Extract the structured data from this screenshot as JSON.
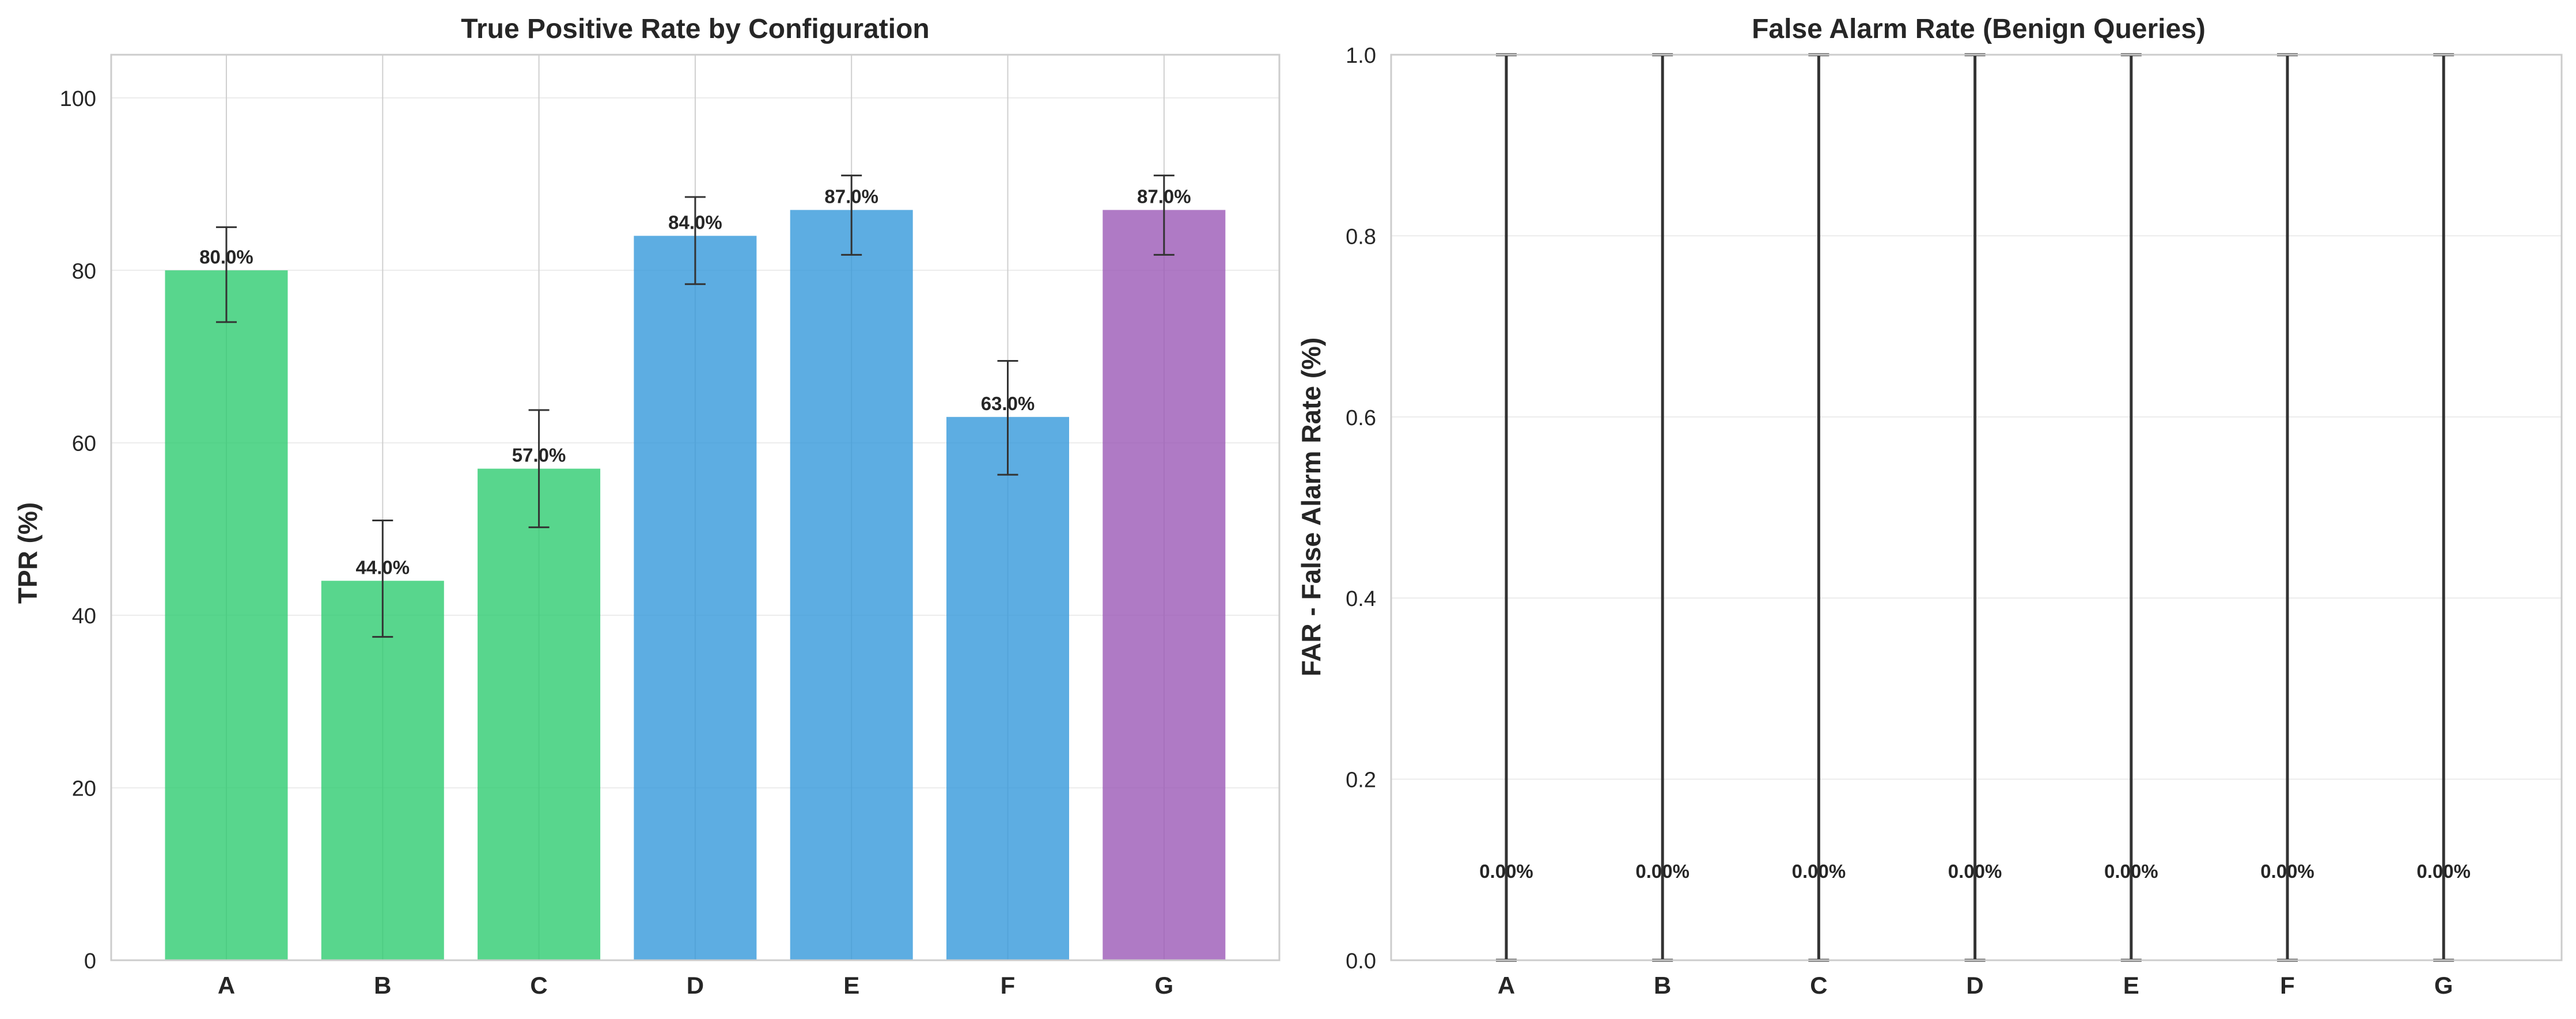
{
  "chart_data": [
    {
      "type": "bar",
      "title": "True Positive Rate by Configuration",
      "xlabel": "",
      "ylabel": "TPR (%)",
      "categories": [
        "A",
        "B",
        "C",
        "D",
        "E",
        "F",
        "G"
      ],
      "values": [
        80.0,
        44.0,
        57.0,
        84.0,
        87.0,
        63.0,
        87.0
      ],
      "error_low": [
        74.0,
        37.5,
        50.2,
        78.4,
        81.8,
        56.3,
        81.8
      ],
      "error_high": [
        85.0,
        51.0,
        63.8,
        88.5,
        91.0,
        69.5,
        91.0
      ],
      "value_labels": [
        "80.0%",
        "44.0%",
        "57.0%",
        "84.0%",
        "87.0%",
        "63.0%",
        "87.0%"
      ],
      "colors": [
        "#2ecc71",
        "#2ecc71",
        "#2ecc71",
        "#3498db",
        "#3498db",
        "#3498db",
        "#9b59b6"
      ],
      "ylim": [
        0,
        105
      ],
      "yticks": [
        0,
        20,
        40,
        60,
        80,
        100
      ],
      "ytick_labels": [
        "0",
        "20",
        "40",
        "60",
        "80",
        "100"
      ],
      "grid": true
    },
    {
      "type": "bar",
      "title": "False Alarm Rate (Benign Queries)",
      "xlabel": "",
      "ylabel": "FAR - False Alarm Rate (%)",
      "categories": [
        "A",
        "B",
        "C",
        "D",
        "E",
        "F",
        "G"
      ],
      "values": [
        0.0,
        0.0,
        0.0,
        0.0,
        0.0,
        0.0,
        0.0
      ],
      "error_low": [
        0.0,
        0.0,
        0.0,
        0.0,
        0.0,
        0.0,
        0.0
      ],
      "error_high": [
        1.0,
        1.0,
        1.0,
        1.0,
        1.0,
        1.0,
        1.0
      ],
      "value_labels": [
        "0.00%",
        "0.00%",
        "0.00%",
        "0.00%",
        "0.00%",
        "0.00%",
        "0.00%"
      ],
      "label_value": 0.1,
      "ylim": [
        0.0,
        1.0
      ],
      "yticks": [
        0.0,
        0.2,
        0.4,
        0.6,
        0.8,
        1.0
      ],
      "ytick_labels": [
        "0.0",
        "0.2",
        "0.4",
        "0.6",
        "0.8",
        "1.0"
      ],
      "grid": true
    }
  ]
}
